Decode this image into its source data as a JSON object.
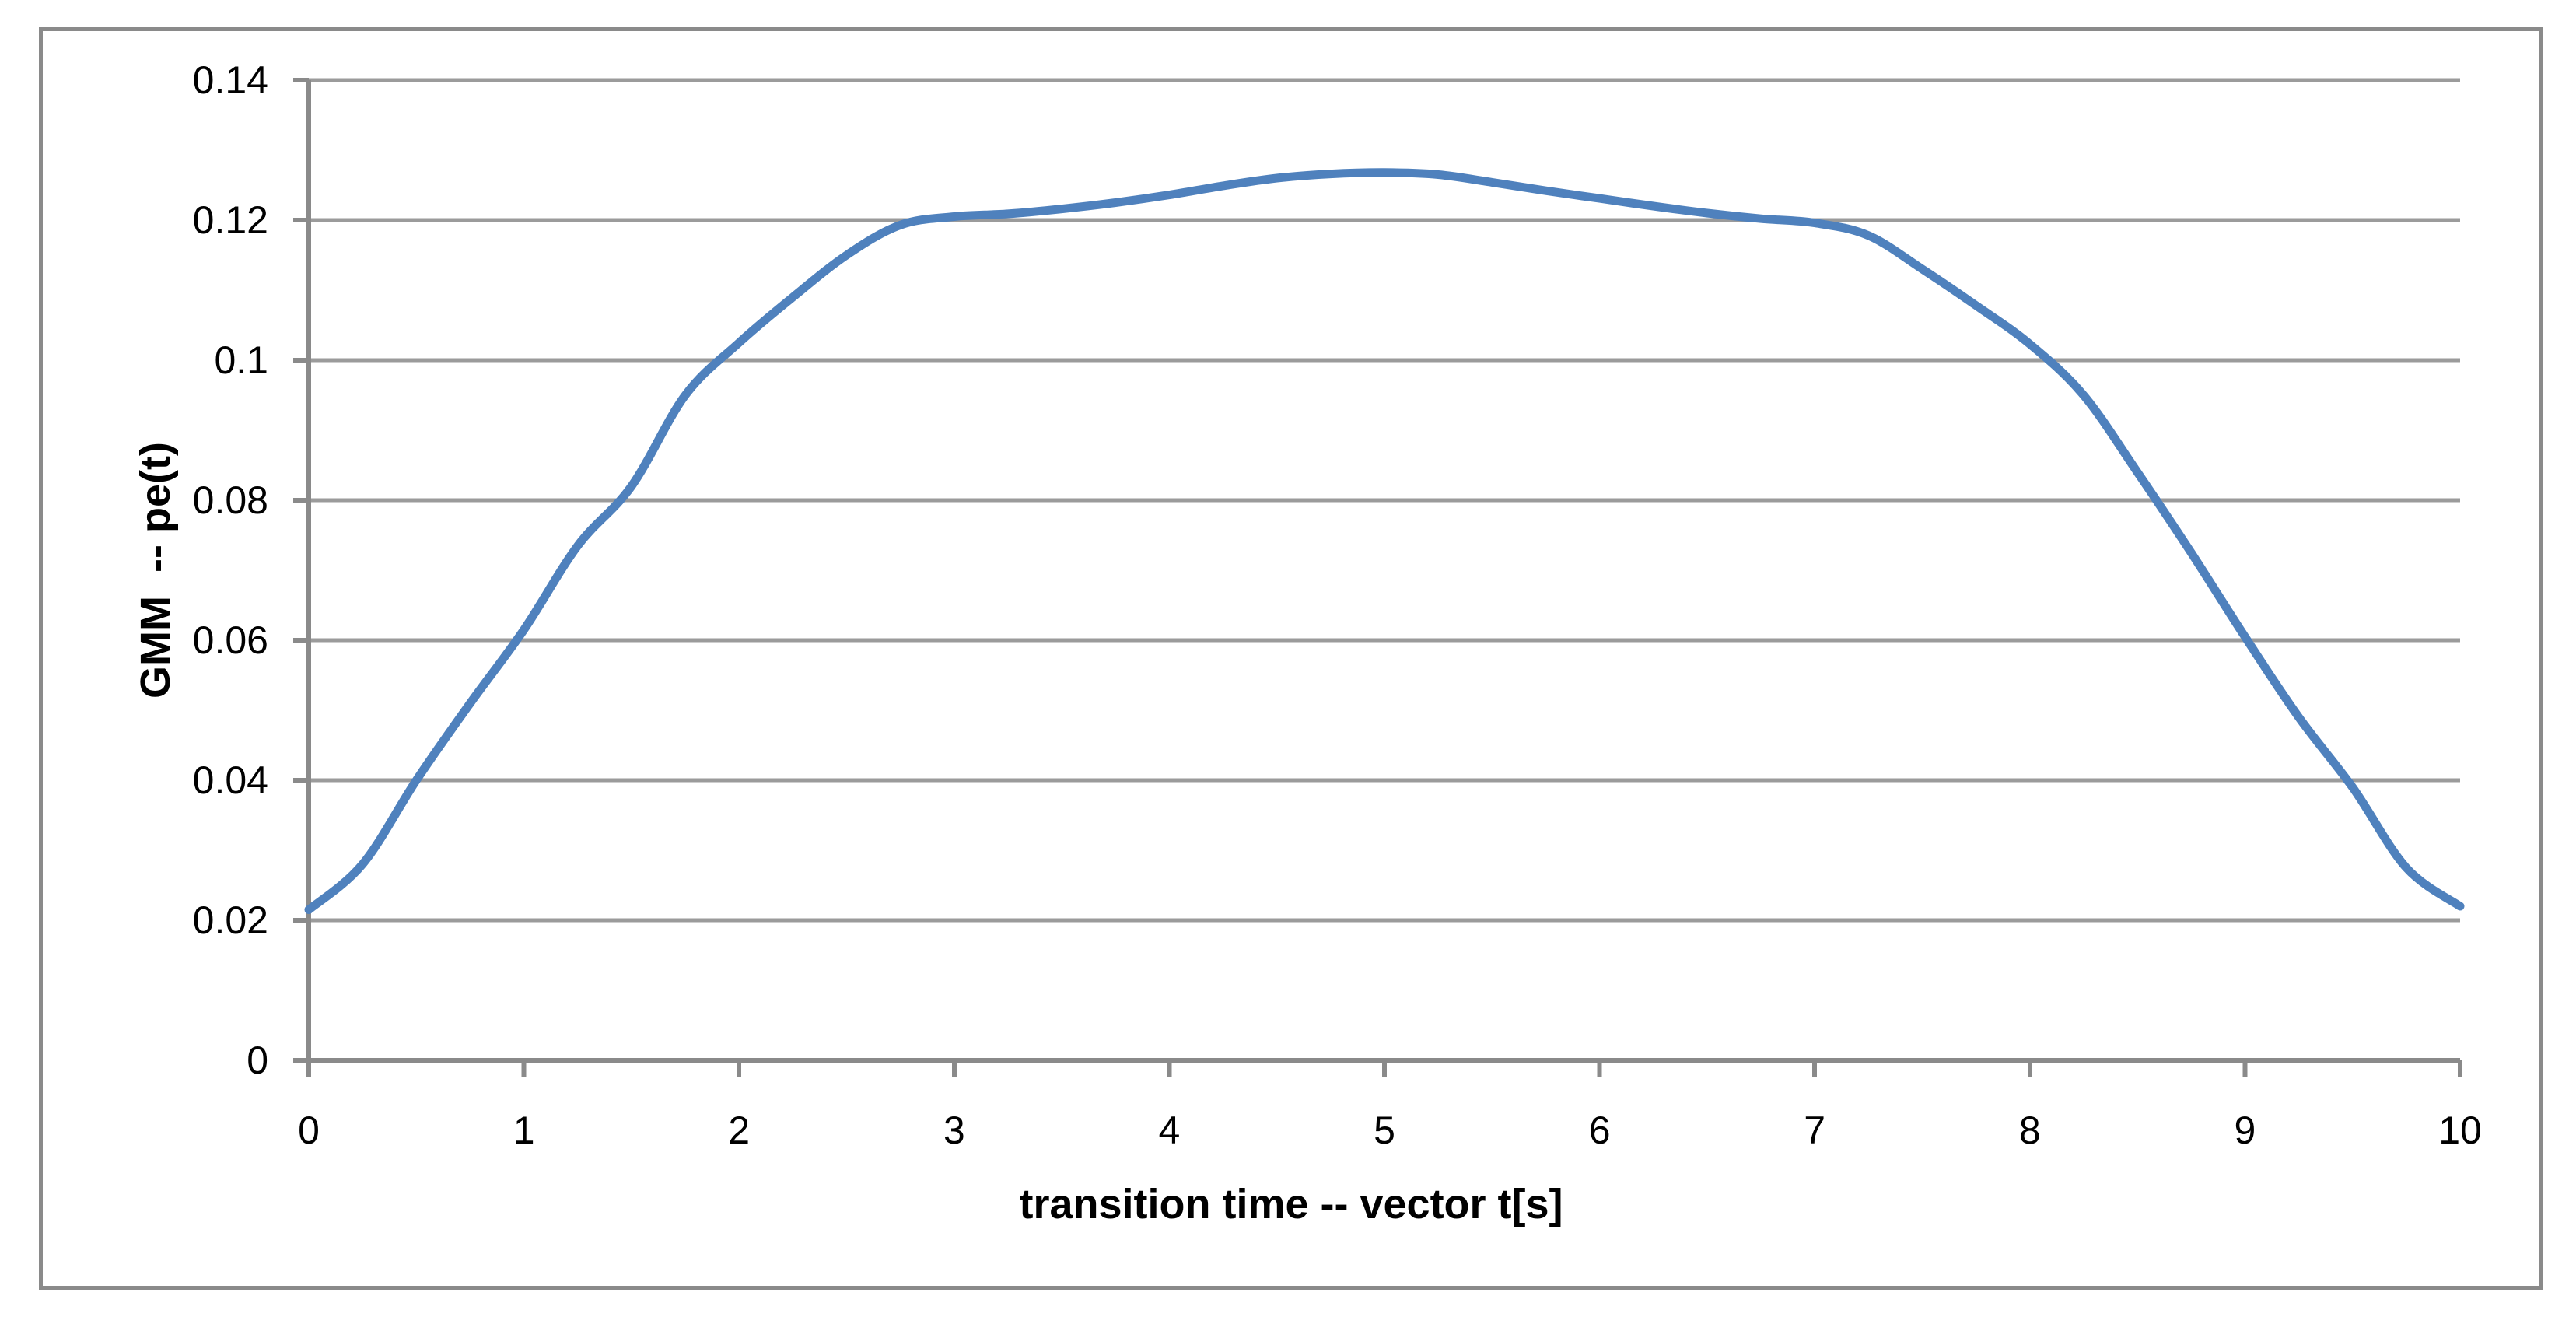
{
  "chart_data": {
    "type": "line",
    "title": "",
    "xlabel": "transition time -- vector t[s]",
    "ylabel": "GMM  -- pe(t)",
    "xlim": [
      0,
      10
    ],
    "ylim": [
      0,
      0.14
    ],
    "xtick_values": [
      0,
      1,
      2,
      3,
      4,
      5,
      6,
      7,
      8,
      9,
      10
    ],
    "xtick_labels": [
      "0",
      "1",
      "2",
      "3",
      "4",
      "5",
      "6",
      "7",
      "8",
      "9",
      "10"
    ],
    "ytick_values": [
      0,
      0.02,
      0.04,
      0.06,
      0.08,
      0.1,
      0.12,
      0.14
    ],
    "ytick_labels": [
      "0",
      "0.02",
      "0.04",
      "0.06",
      "0.08",
      "0.1",
      "0.12",
      "0.14"
    ],
    "grid": "horizontal-major",
    "legend": "none",
    "series": [
      {
        "name": "pe(t)",
        "color": "#4f81bd",
        "x": [
          0,
          0.25,
          0.5,
          0.75,
          1,
          1.25,
          1.5,
          1.75,
          2,
          2.25,
          2.5,
          2.75,
          3,
          3.25,
          3.5,
          3.75,
          4,
          4.25,
          4.5,
          4.75,
          5,
          5.25,
          5.5,
          5.75,
          6,
          6.25,
          6.5,
          6.75,
          7,
          7.25,
          7.5,
          7.75,
          8,
          8.25,
          8.5,
          8.75,
          9,
          9.25,
          9.5,
          9.75,
          10
        ],
        "y": [
          0.0215,
          0.028,
          0.04,
          0.051,
          0.0615,
          0.0735,
          0.082,
          0.095,
          0.1025,
          0.109,
          0.115,
          0.1193,
          0.1205,
          0.1209,
          0.1216,
          0.1225,
          0.1236,
          0.1249,
          0.126,
          0.1266,
          0.1268,
          0.1265,
          0.1254,
          0.1242,
          0.1231,
          0.122,
          0.121,
          0.1202,
          0.1196,
          0.1178,
          0.113,
          0.1078,
          0.1023,
          0.095,
          0.084,
          0.0725,
          0.0605,
          0.049,
          0.039,
          0.0275,
          0.022
        ]
      }
    ],
    "colors": {
      "line": "#4f81bd",
      "gridline": "#9b9b9b",
      "axis": "#8a8a8a",
      "frame_border": "#8a8a8a",
      "background": "#ffffff",
      "text": "#000000"
    }
  }
}
